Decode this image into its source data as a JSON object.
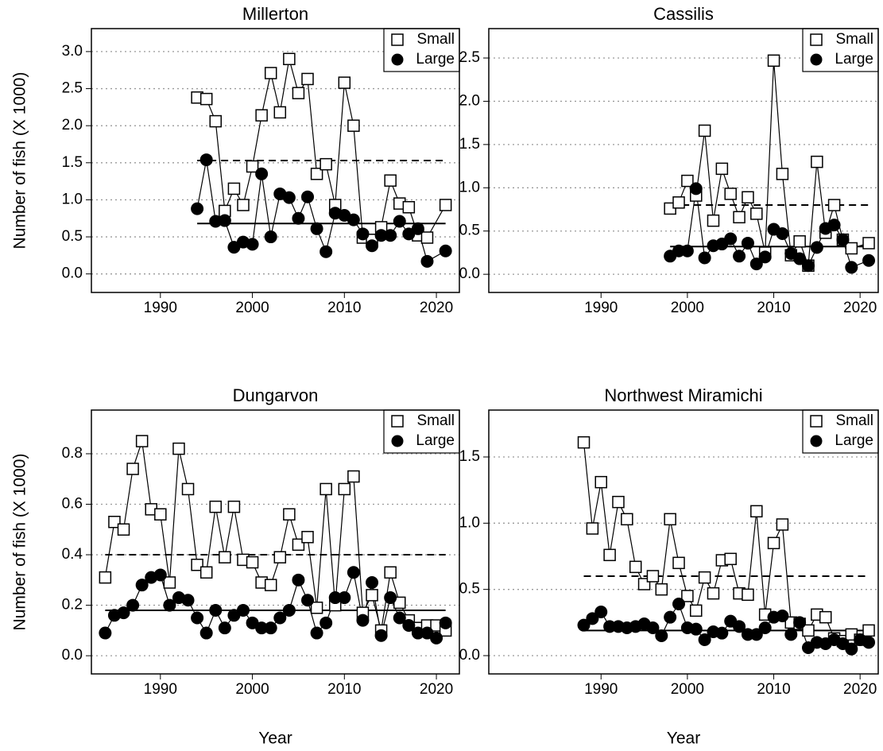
{
  "chart_data": [
    {
      "type": "line",
      "title": "Millerton",
      "ylabel": "Number of fish (X 1000)",
      "x": [
        1994,
        1995,
        1996,
        1997,
        1998,
        1999,
        2000,
        2001,
        2002,
        2003,
        2004,
        2005,
        2006,
        2007,
        2008,
        2009,
        2010,
        2011,
        2012,
        2013,
        2014,
        2015,
        2016,
        2017,
        2018,
        2019,
        2021
      ],
      "series": [
        {
          "name": "Small",
          "marker": "square",
          "color": "#000000",
          "values": [
            2.38,
            2.36,
            2.06,
            0.85,
            1.15,
            0.93,
            1.45,
            2.14,
            2.71,
            2.18,
            2.9,
            2.44,
            2.63,
            1.35,
            1.48,
            0.93,
            2.58,
            2.0,
            0.49,
            0.46,
            0.63,
            1.26,
            0.95,
            0.9,
            0.52,
            0.49,
            0.93
          ]
        },
        {
          "name": "Large",
          "marker": "circle",
          "color": "#000000",
          "values": [
            0.88,
            1.54,
            0.71,
            0.72,
            0.36,
            0.43,
            0.4,
            1.35,
            0.5,
            1.08,
            1.03,
            0.75,
            1.04,
            0.61,
            0.3,
            0.82,
            0.79,
            0.73,
            0.54,
            0.38,
            0.52,
            0.52,
            0.71,
            0.54,
            0.61,
            0.17,
            0.31
          ]
        }
      ],
      "mean_lines": [
        {
          "y": 1.53,
          "style": "dashed",
          "from": 1994,
          "to": 2021
        },
        {
          "y": 0.68,
          "style": "solid",
          "from": 1994,
          "to": 2021
        }
      ],
      "xlim": [
        1982.5,
        2022.5
      ],
      "xticks": [
        1990,
        2000,
        2010,
        2020
      ],
      "ylim": [
        -0.25,
        3.31
      ],
      "yticks": [
        {
          "value": 0,
          "label": "0.0"
        },
        0.5,
        {
          "value": 1,
          "label": "1.0"
        },
        1.5,
        {
          "value": 2,
          "label": "2.0"
        },
        2.5,
        {
          "value": 3,
          "label": "3.0"
        }
      ],
      "grid": true,
      "legend": "top-right"
    },
    {
      "type": "line",
      "title": "Cassilis",
      "x": [
        1998,
        1999,
        2000,
        2001,
        2002,
        2003,
        2004,
        2005,
        2006,
        2007,
        2008,
        2009,
        2010,
        2011,
        2012,
        2013,
        2014,
        2015,
        2016,
        2017,
        2018,
        2019,
        2021
      ],
      "series": [
        {
          "name": "Small",
          "marker": "square",
          "color": "#000000",
          "values": [
            0.76,
            0.83,
            1.08,
            0.91,
            1.66,
            0.62,
            1.22,
            0.93,
            0.66,
            0.89,
            0.7,
            0.25,
            2.47,
            1.16,
            0.22,
            0.38,
            0.1,
            1.3,
            0.48,
            0.8,
            0.4,
            0.3,
            0.36
          ]
        },
        {
          "name": "Large",
          "marker": "circle",
          "color": "#000000",
          "values": [
            0.21,
            0.27,
            0.27,
            0.99,
            0.19,
            0.33,
            0.35,
            0.41,
            0.21,
            0.36,
            0.12,
            0.2,
            0.52,
            0.47,
            0.24,
            0.18,
            0.1,
            0.31,
            0.53,
            0.57,
            0.4,
            0.08,
            0.16
          ]
        }
      ],
      "mean_lines": [
        {
          "y": 0.8,
          "style": "dashed",
          "from": 1998,
          "to": 2021
        },
        {
          "y": 0.32,
          "style": "solid",
          "from": 1998,
          "to": 2021
        }
      ],
      "xlim": [
        1977,
        2022.1
      ],
      "xticks": [
        1990,
        2000,
        2010,
        2020
      ],
      "ylim": [
        -0.21,
        2.84
      ],
      "yticks": [
        {
          "value": 0,
          "label": "0.0"
        },
        0.5,
        {
          "value": 1,
          "label": "1.0"
        },
        1.5,
        {
          "value": 2,
          "label": "2.0"
        },
        2.5
      ],
      "grid": true,
      "legend": "top-right"
    },
    {
      "type": "line",
      "title": "Dungarvon",
      "ylabel": "Number of fish (X 1000)",
      "xlabel": "Year",
      "x": [
        1984,
        1985,
        1986,
        1987,
        1988,
        1989,
        1990,
        1991,
        1992,
        1993,
        1994,
        1995,
        1996,
        1997,
        1998,
        1999,
        2000,
        2001,
        2002,
        2003,
        2004,
        2005,
        2006,
        2007,
        2008,
        2009,
        2010,
        2011,
        2012,
        2013,
        2014,
        2015,
        2016,
        2017,
        2018,
        2019,
        2020,
        2021
      ],
      "series": [
        {
          "name": "Small",
          "marker": "square",
          "color": "#000000",
          "values": [
            0.31,
            0.53,
            0.5,
            0.74,
            0.85,
            0.58,
            0.56,
            0.29,
            0.82,
            0.66,
            0.36,
            0.33,
            0.59,
            0.39,
            0.59,
            0.38,
            0.37,
            0.29,
            0.28,
            0.39,
            0.56,
            0.44,
            0.47,
            0.19,
            0.66,
            0.2,
            0.66,
            0.71,
            0.17,
            0.24,
            0.1,
            0.33,
            0.21,
            0.14,
            0.11,
            0.12,
            0.12,
            0.1
          ]
        },
        {
          "name": "Large",
          "marker": "circle",
          "color": "#000000",
          "values": [
            0.09,
            0.16,
            0.17,
            0.2,
            0.28,
            0.31,
            0.32,
            0.2,
            0.23,
            0.22,
            0.15,
            0.09,
            0.18,
            0.11,
            0.16,
            0.18,
            0.13,
            0.11,
            0.11,
            0.15,
            0.18,
            0.3,
            0.22,
            0.09,
            0.13,
            0.23,
            0.23,
            0.33,
            0.14,
            0.29,
            0.08,
            0.23,
            0.15,
            0.12,
            0.09,
            0.09,
            0.07,
            0.13
          ]
        }
      ],
      "mean_lines": [
        {
          "y": 0.4,
          "style": "dashed",
          "from": 1984,
          "to": 2021
        },
        {
          "y": 0.18,
          "style": "solid",
          "from": 1984,
          "to": 2021
        }
      ],
      "xlim": [
        1982.5,
        2022.5
      ],
      "xticks": [
        1990,
        2000,
        2010,
        2020
      ],
      "ylim": [
        -0.072,
        0.973
      ],
      "yticks": [
        {
          "value": 0,
          "label": "0.0"
        },
        0.2,
        0.4,
        0.6,
        0.8
      ],
      "grid": true,
      "legend": "top-right"
    },
    {
      "type": "line",
      "title": "Northwest Miramichi",
      "xlabel": "Year",
      "x": [
        1988,
        1989,
        1990,
        1991,
        1992,
        1993,
        1994,
        1995,
        1996,
        1997,
        1998,
        1999,
        2000,
        2001,
        2002,
        2003,
        2004,
        2005,
        2006,
        2007,
        2008,
        2009,
        2010,
        2011,
        2012,
        2013,
        2014,
        2015,
        2016,
        2017,
        2018,
        2019,
        2020,
        2021
      ],
      "series": [
        {
          "name": "Small",
          "marker": "square",
          "color": "#000000",
          "values": [
            1.61,
            0.96,
            1.31,
            0.76,
            1.16,
            1.03,
            0.67,
            0.54,
            0.6,
            0.5,
            1.03,
            0.7,
            0.45,
            0.34,
            0.59,
            0.47,
            0.72,
            0.73,
            0.47,
            0.46,
            1.09,
            0.31,
            0.85,
            0.99,
            0.25,
            0.24,
            0.19,
            0.31,
            0.29,
            0.13,
            0.11,
            0.16,
            0.12,
            0.19
          ]
        },
        {
          "name": "Large",
          "marker": "circle",
          "color": "#000000",
          "values": [
            0.23,
            0.28,
            0.33,
            0.22,
            0.22,
            0.21,
            0.22,
            0.24,
            0.21,
            0.15,
            0.29,
            0.39,
            0.21,
            0.2,
            0.12,
            0.18,
            0.17,
            0.26,
            0.22,
            0.16,
            0.16,
            0.21,
            0.29,
            0.3,
            0.16,
            0.25,
            0.06,
            0.1,
            0.09,
            0.12,
            0.09,
            0.05,
            0.12,
            0.1
          ]
        }
      ],
      "mean_lines": [
        {
          "y": 0.6,
          "style": "dashed",
          "from": 1988,
          "to": 2021
        },
        {
          "y": 0.19,
          "style": "solid",
          "from": 1988,
          "to": 2021
        }
      ],
      "xlim": [
        1977,
        2022.1
      ],
      "xticks": [
        1990,
        2000,
        2010,
        2020
      ],
      "ylim": [
        -0.138,
        1.854
      ],
      "yticks": [
        {
          "value": 0,
          "label": "0.0"
        },
        0.5,
        {
          "value": 1,
          "label": "1.0"
        },
        1.5
      ],
      "grid": true,
      "legend": "top-right"
    }
  ]
}
